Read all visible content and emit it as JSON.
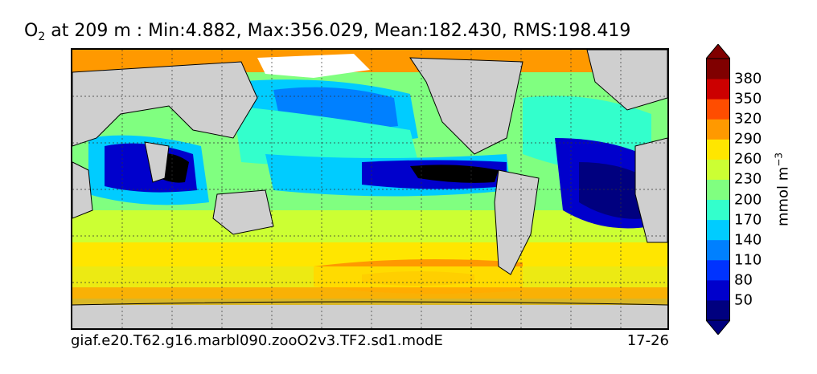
{
  "title": {
    "species": "O",
    "subscript": "2",
    "rest": " at 209 m : Min:4.882, Max:356.029, Mean:182.430, RMS:198.419"
  },
  "footer": {
    "case_name": "giaf.e20.T62.g16.marbl090.zooO2v3.TF2.sd1.modE",
    "years": "17-26"
  },
  "colorbar": {
    "unit_base": "mmol m",
    "unit_exp": "−3",
    "ticks": [
      "50",
      "80",
      "110",
      "140",
      "170",
      "200",
      "230",
      "260",
      "290",
      "320",
      "350",
      "380"
    ],
    "colors": [
      "#00007f",
      "#0000cc",
      "#0033ff",
      "#0080ff",
      "#00ccff",
      "#33ffcc",
      "#80ff80",
      "#ccff33",
      "#ffe600",
      "#ff9900",
      "#ff4d00",
      "#cc0000",
      "#800000"
    ]
  },
  "map": {
    "land_color": "#cfcfcf",
    "ice_color": "#ffffff",
    "grid": true,
    "contour_lines": true
  }
}
